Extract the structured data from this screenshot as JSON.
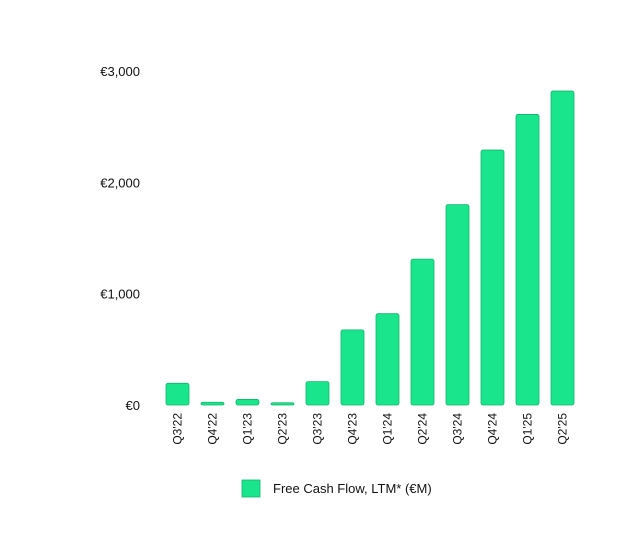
{
  "chart_data": {
    "type": "bar",
    "categories": [
      "Q3'22",
      "Q4'22",
      "Q1'23",
      "Q2'23",
      "Q3'23",
      "Q4'23",
      "Q1'24",
      "Q2'24",
      "Q3'24",
      "Q4'24",
      "Q1'25",
      "Q2'25"
    ],
    "series": [
      {
        "name": "Free Cash Flow, LTM* (€M)",
        "values": [
          195,
          25,
          50,
          20,
          210,
          675,
          820,
          1310,
          1800,
          2290,
          2610,
          2820
        ],
        "color": "#19e68c"
      }
    ],
    "title": "",
    "xlabel": "",
    "ylabel": "",
    "ylim": [
      0,
      3000
    ],
    "yticks": [
      0,
      1000,
      2000,
      3000
    ],
    "ytick_labels": [
      "€0",
      "€1,000",
      "€2,000",
      "€3,000"
    ],
    "grid": false,
    "legend_position": "bottom"
  }
}
